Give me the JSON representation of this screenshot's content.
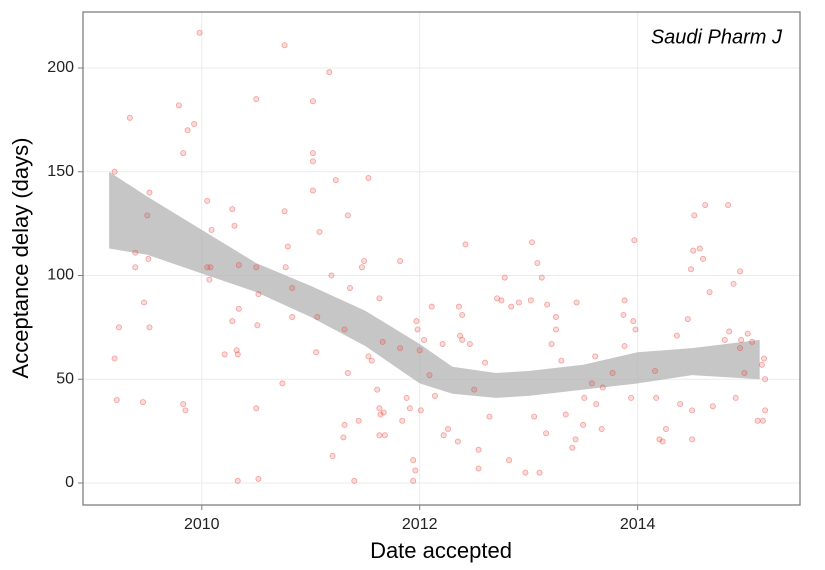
{
  "chart_data": {
    "type": "scatter",
    "annotation": "Saudi Pharm J",
    "x_label": "Date accepted",
    "y_label": "Acceptance delay (days)",
    "xlim": [
      2008.91,
      2015.49
    ],
    "ylim": [
      -10.6,
      227
    ],
    "xticks": [
      2010,
      2012,
      2014
    ],
    "yticks": [
      0,
      50,
      100,
      150,
      200
    ],
    "grid": true,
    "color": "#e8453c",
    "x": [
      2009.2,
      2009.2,
      2009.22,
      2009.24,
      2009.34,
      2009.39,
      2009.39,
      2009.46,
      2009.47,
      2009.5,
      2009.52,
      2009.51,
      2009.52,
      2009.79,
      2009.83,
      2009.87,
      2009.93,
      2009.83,
      2009.85,
      2009.98,
      2010.05,
      2010.05,
      2010.08,
      2010.09,
      2010.07,
      2010.28,
      2010.3,
      2010.28,
      2010.32,
      2010.33,
      2010.21,
      2010.33,
      2010.34,
      2010.34,
      2010.5,
      2010.5,
      2010.52,
      2010.51,
      2010.5,
      2010.52,
      2010.76,
      2010.76,
      2010.79,
      2010.77,
      2010.83,
      2010.83,
      2010.74,
      2011.02,
      2011.02,
      2011.02,
      2011.02,
      2011.08,
      2011.06,
      2011.05,
      2011.17,
      2011.23,
      2011.19,
      2011.2,
      2011.34,
      2011.36,
      2011.31,
      2011.34,
      2011.31,
      2011.3,
      2011.4,
      2011.44,
      2011.47,
      2011.49,
      2011.53,
      2011.53,
      2011.56,
      2011.61,
      2011.63,
      2011.66,
      2011.63,
      2011.64,
      2011.63,
      2011.68,
      2011.67,
      2011.82,
      2011.82,
      2011.84,
      2011.88,
      2011.91,
      2011.94,
      2011.96,
      2011.94,
      2011.97,
      2011.98,
      2012.0,
      2012.01,
      2012.04,
      2012.11,
      2012.09,
      2012.14,
      2012.22,
      2012.21,
      2012.26,
      2012.35,
      2012.36,
      2012.39,
      2012.42,
      2012.37,
      2012.39,
      2012.46,
      2012.5,
      2012.54,
      2012.54,
      2012.6,
      2012.64,
      2012.71,
      2012.75,
      2012.78,
      2012.82,
      2012.84,
      2012.91,
      2012.97,
      2013.02,
      2013.03,
      2013.08,
      2013.1,
      2013.12,
      2013.05,
      2013.16,
      2013.17,
      2013.21,
      2013.25,
      2013.25,
      2013.3,
      2013.34,
      2013.4,
      2013.43,
      2013.44,
      2013.5,
      2013.51,
      2013.58,
      2013.61,
      2013.62,
      2013.67,
      2013.68,
      2013.77,
      2013.88,
      2013.87,
      2013.88,
      2013.94,
      2013.97,
      2013.96,
      2013.98,
      2014.16,
      2014.17,
      2014.2,
      2014.26,
      2014.23,
      2014.36,
      2014.39,
      2014.46,
      2014.5,
      2014.5,
      2014.49,
      2014.51,
      2014.52,
      2014.57,
      2014.6,
      2014.62,
      2014.66,
      2014.69,
      2014.8,
      2014.83,
      2014.84,
      2014.88,
      2014.9,
      2014.94,
      2014.94,
      2014.95,
      2014.98,
      2015.01,
      2015.05,
      2015.1,
      2015.15,
      2015.16,
      2015.17,
      2015.17,
      2015.14
    ],
    "values": [
      150,
      60,
      40,
      75,
      176,
      111,
      104,
      39,
      87,
      129,
      140,
      108,
      75,
      182,
      159,
      170,
      173,
      38,
      35,
      217,
      136,
      104,
      104,
      122,
      98,
      132,
      124,
      78,
      64,
      62,
      62,
      1,
      84,
      105,
      185,
      104,
      91,
      76,
      36,
      2,
      211,
      131,
      114,
      104,
      94,
      80,
      48,
      184,
      159,
      155,
      141,
      121,
      80,
      63,
      198,
      146,
      100,
      13,
      129,
      94,
      74,
      53,
      28,
      22,
      1,
      30,
      104,
      107,
      147,
      61,
      59,
      45,
      89,
      68,
      36,
      33,
      23,
      23,
      34,
      107,
      65,
      30,
      41,
      36,
      11,
      6,
      1,
      78,
      74,
      64,
      35,
      69,
      85,
      52,
      42,
      23,
      67,
      26,
      20,
      85,
      81,
      115,
      71,
      69,
      67,
      45,
      16,
      7,
      58,
      32,
      89,
      88,
      99,
      11,
      85,
      87,
      5,
      88,
      116,
      106,
      5,
      99,
      32,
      24,
      86,
      67,
      80,
      74,
      59,
      33,
      17,
      21,
      87,
      28,
      41,
      48,
      61,
      38,
      26,
      46,
      53,
      88,
      81,
      66,
      41,
      117,
      78,
      74,
      54,
      41,
      21,
      26,
      20,
      71,
      38,
      79,
      35,
      21,
      103,
      112,
      129,
      113,
      108,
      134,
      92,
      37,
      69,
      134,
      73,
      96,
      41,
      102,
      65,
      69,
      53,
      72,
      68,
      30,
      30,
      60,
      35,
      50,
      57
    ],
    "band": {
      "color": "#b3b3b3",
      "x": [
        2009.15,
        2009.5,
        2010,
        2010.5,
        2011,
        2011.5,
        2012,
        2012.3,
        2012.7,
        2013,
        2013.5,
        2014,
        2014.5,
        2015.12
      ],
      "lower": [
        113,
        110,
        101,
        92,
        80,
        66,
        48,
        43,
        41,
        42,
        45,
        48,
        52,
        50
      ],
      "upper": [
        150,
        138,
        122,
        106,
        95,
        83,
        67,
        56,
        53,
        54,
        57,
        63,
        65,
        69
      ]
    }
  }
}
